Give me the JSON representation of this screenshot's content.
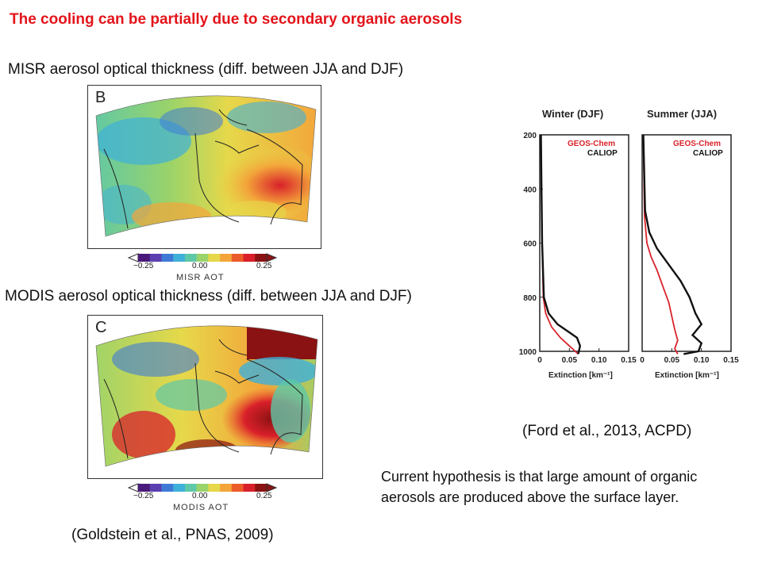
{
  "title": "The cooling can be partially due to secondary organic aerosols",
  "misr": {
    "caption": "MISR aerosol optical thickness (diff. between JJA and DJF)",
    "panel_letter": "B",
    "colorbar_ticks": [
      "−0.25",
      "0.00",
      "0.25"
    ],
    "colorbar_title": "MISR AOT"
  },
  "modis": {
    "caption": "MODIS aerosol optical thickness (diff. between JJA and DJF)",
    "panel_letter": "C",
    "colorbar_ticks": [
      "−0.25",
      "0.00",
      "0.25"
    ],
    "colorbar_title": "MODIS AOT"
  },
  "colorbar_colors": [
    "#4a1a7a",
    "#5b3fb0",
    "#3f7bd6",
    "#3fb0d9",
    "#5ec8a8",
    "#9ad36a",
    "#e6d84a",
    "#f3a53a",
    "#ec5b2a",
    "#d9202a",
    "#8a1212"
  ],
  "goldstein_citation": "(Goldstein et al., PNAS, 2009)",
  "ford_citation": "(Ford et al., 2013, ACPD)",
  "hypothesis": "Current hypothesis is that large amount of organic aerosols are produced above the surface layer.",
  "chart_data": [
    {
      "type": "line",
      "title": "Winter (DJF)",
      "xlabel": "Extinction [km⁻¹]",
      "ylabel": "",
      "xlim": [
        0,
        0.15
      ],
      "ylim": [
        1000,
        200
      ],
      "xticks": [
        "0",
        "0.05",
        "0.10",
        "0.15"
      ],
      "yticks": [
        "200",
        "400",
        "600",
        "800",
        "1000"
      ],
      "series": [
        {
          "name": "GEOS-Chem",
          "color": "#d8232a",
          "x": [
            0.002,
            0.003,
            0.004,
            0.006,
            0.01,
            0.02,
            0.035,
            0.05,
            0.06,
            0.065
          ],
          "y": [
            200,
            400,
            600,
            800,
            860,
            910,
            950,
            980,
            1000,
            1010
          ]
        },
        {
          "name": "CALIOP",
          "color": "#111111",
          "x": [
            0.002,
            0.003,
            0.004,
            0.007,
            0.015,
            0.03,
            0.05,
            0.063,
            0.068,
            0.065
          ],
          "y": [
            200,
            400,
            600,
            800,
            860,
            900,
            930,
            950,
            980,
            1010
          ]
        }
      ]
    },
    {
      "type": "line",
      "title": "Summer (JJA)",
      "xlabel": "Extinction [km⁻¹]",
      "ylabel": "",
      "xlim": [
        0,
        0.15
      ],
      "ylim": [
        1000,
        200
      ],
      "xticks": [
        "0",
        "0.05",
        "0.10",
        "0.15"
      ],
      "yticks": [],
      "series": [
        {
          "name": "GEOS-Chem",
          "color": "#d8232a",
          "x": [
            0.002,
            0.004,
            0.008,
            0.015,
            0.025,
            0.035,
            0.045,
            0.05,
            0.055,
            0.06,
            0.055,
            0.06
          ],
          "y": [
            200,
            500,
            600,
            650,
            700,
            760,
            820,
            870,
            920,
            960,
            990,
            1010
          ]
        },
        {
          "name": "CALIOP",
          "color": "#111111",
          "x": [
            0.002,
            0.005,
            0.012,
            0.025,
            0.045,
            0.065,
            0.08,
            0.09,
            0.1,
            0.085,
            0.1,
            0.095,
            0.07
          ],
          "y": [
            200,
            480,
            560,
            620,
            680,
            740,
            800,
            860,
            900,
            940,
            970,
            1000,
            1010
          ]
        }
      ]
    }
  ]
}
